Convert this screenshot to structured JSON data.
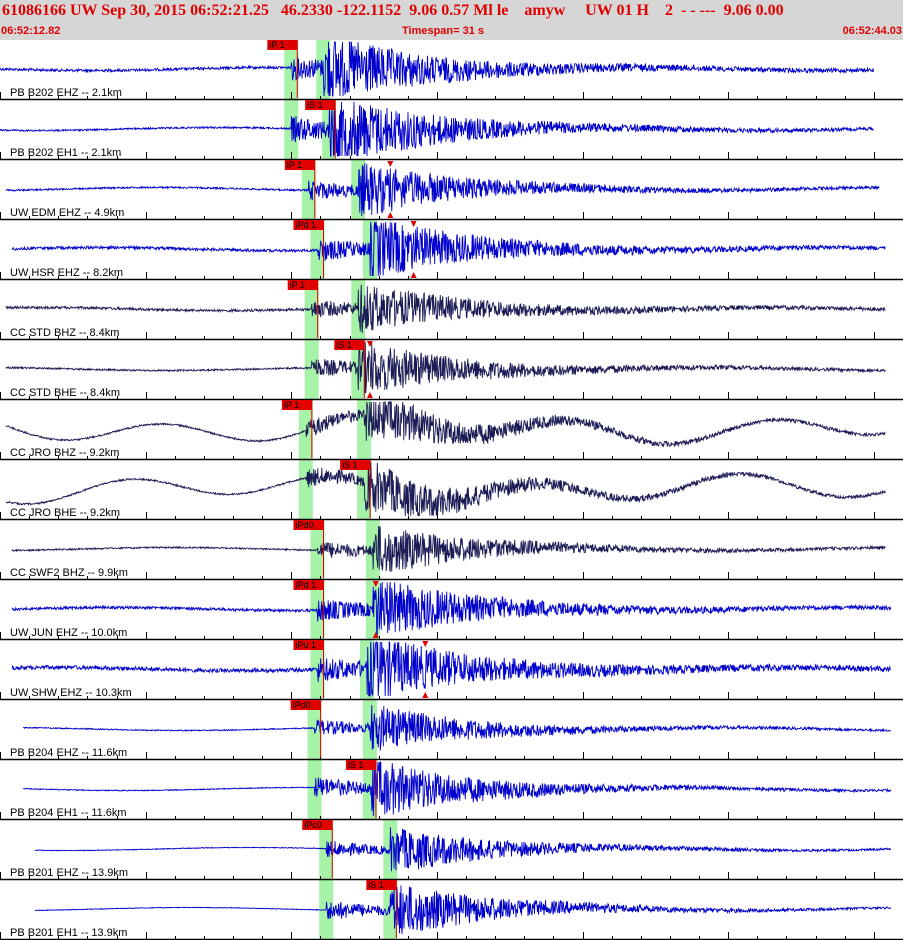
{
  "header": {
    "title": "61086166 UW Sep 30, 2015 06:52:21.25   46.2330 -122.1152  9.06 0.57 Ml le    amyw     UW 01 H    2  - - ---  9.06 0.00",
    "start_time": "06:52:12.82",
    "timespan": "Timespan=  31 s",
    "end_time": "06:52:44.03"
  },
  "colors": {
    "accent": "#e00000",
    "trace_blue": "#0000cc",
    "trace_dark": "#1a1a55",
    "phase_band": "#a6f2a6",
    "header_bg": "#d6d6d6"
  },
  "traces": [
    {
      "label": "PB B202 EHZ -- 2.1km",
      "color": "blue",
      "lowfreq": false,
      "pick": "iP 1",
      "pick_type": "P",
      "pick_s": 1.0,
      "p_s": 10.0,
      "s_s": 11.1,
      "amp": 1.0,
      "noise": 0.05,
      "spike_s": 0,
      "end_s": 30.0,
      "start_s": 0.0
    },
    {
      "label": "PB B202 EH1 -- 2.1km",
      "color": "blue",
      "lowfreq": false,
      "pick": "iS 1",
      "pick_type": "S",
      "pick_s": 0.0,
      "p_s": 10.0,
      "s_s": 11.3,
      "amp": 1.1,
      "noise": 0.03,
      "spike_s": 0,
      "end_s": 30.0,
      "start_s": 0.0
    },
    {
      "label": "UW EDM EHZ -- 4.9km",
      "color": "blue",
      "lowfreq": false,
      "pick": "iP 1",
      "pick_type": "P",
      "pick_s": 0.0,
      "p_s": 10.6,
      "s_s": 12.3,
      "amp": 0.8,
      "noise": 0.04,
      "spike_s": 13.4,
      "end_s": 30.2,
      "start_s": 0.2
    },
    {
      "label": "UW HSR EHZ -- 8.2km",
      "color": "blue",
      "lowfreq": false,
      "pick": "iPd 1",
      "pick_type": "P",
      "pick_s": 0.0,
      "p_s": 10.9,
      "s_s": 12.7,
      "amp": 0.9,
      "noise": 0.06,
      "spike_s": 14.2,
      "end_s": 30.4,
      "start_s": 0.4
    },
    {
      "label": "CC STD BHZ -- 8.4km",
      "color": "dark",
      "lowfreq": false,
      "pick": "iP 1",
      "pick_type": "P",
      "pick_s": 0.0,
      "p_s": 10.7,
      "s_s": 12.3,
      "amp": 0.7,
      "noise": 0.07,
      "spike_s": 0,
      "end_s": 30.4,
      "start_s": 0.2
    },
    {
      "label": "CC STD BHE -- 8.4km",
      "color": "dark",
      "lowfreq": false,
      "pick": "iS 1",
      "pick_type": "S",
      "pick_s": 0.0,
      "p_s": 10.7,
      "s_s": 12.3,
      "amp": 0.8,
      "noise": 0.04,
      "spike_s": 12.7,
      "end_s": 30.4,
      "start_s": 0.2
    },
    {
      "label": "CC JRO BHZ -- 9.2km",
      "color": "dark",
      "lowfreq": true,
      "pick": "iP 1",
      "pick_type": "P",
      "pick_s": 0.0,
      "p_s": 10.5,
      "s_s": 12.5,
      "amp": 0.8,
      "noise": 0.04,
      "spike_s": 0,
      "end_s": 30.4,
      "start_s": 0.2
    },
    {
      "label": "CC JRO BHE -- 9.2km",
      "color": "dark",
      "lowfreq": true,
      "pick": "iS 1",
      "pick_type": "S",
      "pick_s": 0.0,
      "p_s": 10.5,
      "s_s": 12.5,
      "amp": 0.8,
      "noise": 0.04,
      "spike_s": 0,
      "end_s": 30.4,
      "start_s": 0.2
    },
    {
      "label": "CC SWF2 BHZ -- 9.9km",
      "color": "dark",
      "lowfreq": false,
      "pick": "iPd0",
      "pick_type": "P",
      "pick_s": 0.0,
      "p_s": 10.9,
      "s_s": 12.8,
      "amp": 0.75,
      "noise": 0.04,
      "spike_s": 0,
      "end_s": 30.4,
      "start_s": 0.4
    },
    {
      "label": "UW JUN EHZ -- 10.0km",
      "color": "blue",
      "lowfreq": false,
      "pick": "iPd 1",
      "pick_type": "P",
      "pick_s": 0.0,
      "p_s": 10.9,
      "s_s": 12.8,
      "amp": 0.9,
      "noise": 0.06,
      "spike_s": 12.9,
      "end_s": 30.6,
      "start_s": 0.4
    },
    {
      "label": "UW SHW EHZ -- 10.3km",
      "color": "blue",
      "lowfreq": false,
      "pick": "iPu 1",
      "pick_type": "P",
      "pick_s": 0.0,
      "p_s": 10.9,
      "s_s": 12.6,
      "amp": 0.95,
      "noise": 0.08,
      "spike_s": 14.6,
      "end_s": 30.6,
      "start_s": 0.4
    },
    {
      "label": "PB B204 EHZ -- 11.6km",
      "color": "blue",
      "lowfreq": false,
      "pick": "iPd0",
      "pick_type": "P",
      "pick_s": 0.0,
      "p_s": 10.8,
      "s_s": 12.7,
      "amp": 0.7,
      "noise": 0.03,
      "spike_s": 0,
      "end_s": 30.6,
      "start_s": 0.8
    },
    {
      "label": "PB B204 EH1 -- 11.6km",
      "color": "blue",
      "lowfreq": false,
      "pick": "iS 1",
      "pick_type": "S",
      "pick_s": 0.0,
      "p_s": 10.8,
      "s_s": 12.7,
      "amp": 0.9,
      "noise": 0.02,
      "spike_s": 0,
      "end_s": 30.6,
      "start_s": 0.8
    },
    {
      "label": "PB B201 EHZ -- 13.9km",
      "color": "blue",
      "lowfreq": false,
      "pick": "iPc0",
      "pick_type": "P",
      "pick_s": 0.0,
      "p_s": 11.2,
      "s_s": 13.4,
      "amp": 0.7,
      "noise": 0.02,
      "spike_s": 0,
      "end_s": 30.6,
      "start_s": 1.2
    },
    {
      "label": "PB B201 EH1 -- 13.9km",
      "color": "blue",
      "lowfreq": false,
      "pick": "iS 1",
      "pick_type": "S",
      "pick_s": 0.0,
      "p_s": 11.2,
      "s_s": 13.4,
      "amp": 0.85,
      "noise": 0.015,
      "spike_s": 0,
      "end_s": 30.6,
      "start_s": 1.2
    }
  ]
}
